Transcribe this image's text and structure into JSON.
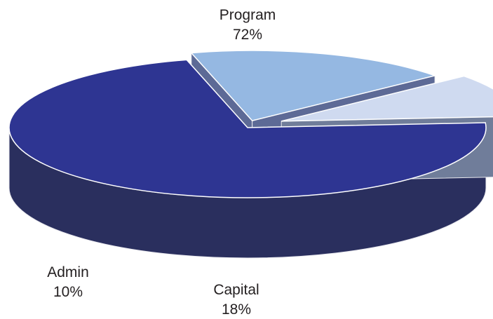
{
  "chart_data": {
    "type": "pie",
    "style": "3d-exploded",
    "categories": [
      "Program",
      "Capital",
      "Admin"
    ],
    "values": [
      72,
      18,
      10
    ],
    "value_labels": [
      "72%",
      "18%",
      "10%"
    ],
    "colors": {
      "Program": {
        "top": "#2e3592",
        "side": "#2a2f5e"
      },
      "Capital": {
        "top": "#95b8e2",
        "side": "#5d6a96"
      },
      "Admin": {
        "top": "#cfdaf0",
        "side": "#707d9a"
      }
    },
    "title": "",
    "legend": "none"
  }
}
